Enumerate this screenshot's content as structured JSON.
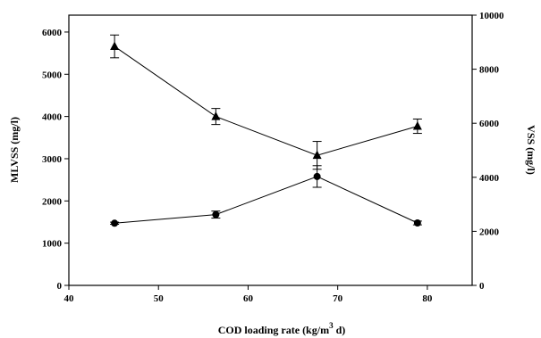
{
  "chart_data": {
    "type": "line",
    "title": "",
    "xlabel": "COD loading rate (kg/m",
    "xlabel_sup": "3",
    "xlabel_tail": " d)",
    "ylabel_left": "MLVSS (mg/l)",
    "ylabel_right": "VSS (mg/l)",
    "xlim": [
      40,
      85
    ],
    "ylim_left": [
      0,
      6400
    ],
    "ylim_right": [
      0,
      10000
    ],
    "x_ticks": [
      "40",
      "50",
      "60",
      "70",
      "80"
    ],
    "y_left_ticks": [
      "0",
      "1000",
      "2000",
      "3000",
      "4000",
      "5000",
      "6000"
    ],
    "y_right_ticks": [
      "0",
      "2000",
      "4000",
      "6000",
      "8000",
      "10000"
    ],
    "grid": false,
    "series": [
      {
        "marker": "triangle",
        "axis": "left",
        "x": [
          45.1,
          56.4,
          67.7,
          78.9
        ],
        "y": [
          5660,
          4000,
          3080,
          3770
        ],
        "err": [
          270,
          190,
          330,
          170
        ]
      },
      {
        "marker": "circle",
        "axis": "right",
        "x": [
          45.1,
          56.4,
          67.7,
          78.9
        ],
        "y": [
          2300,
          2620,
          4030,
          2310
        ],
        "err": [
          40,
          130,
          400,
          70
        ]
      }
    ]
  }
}
